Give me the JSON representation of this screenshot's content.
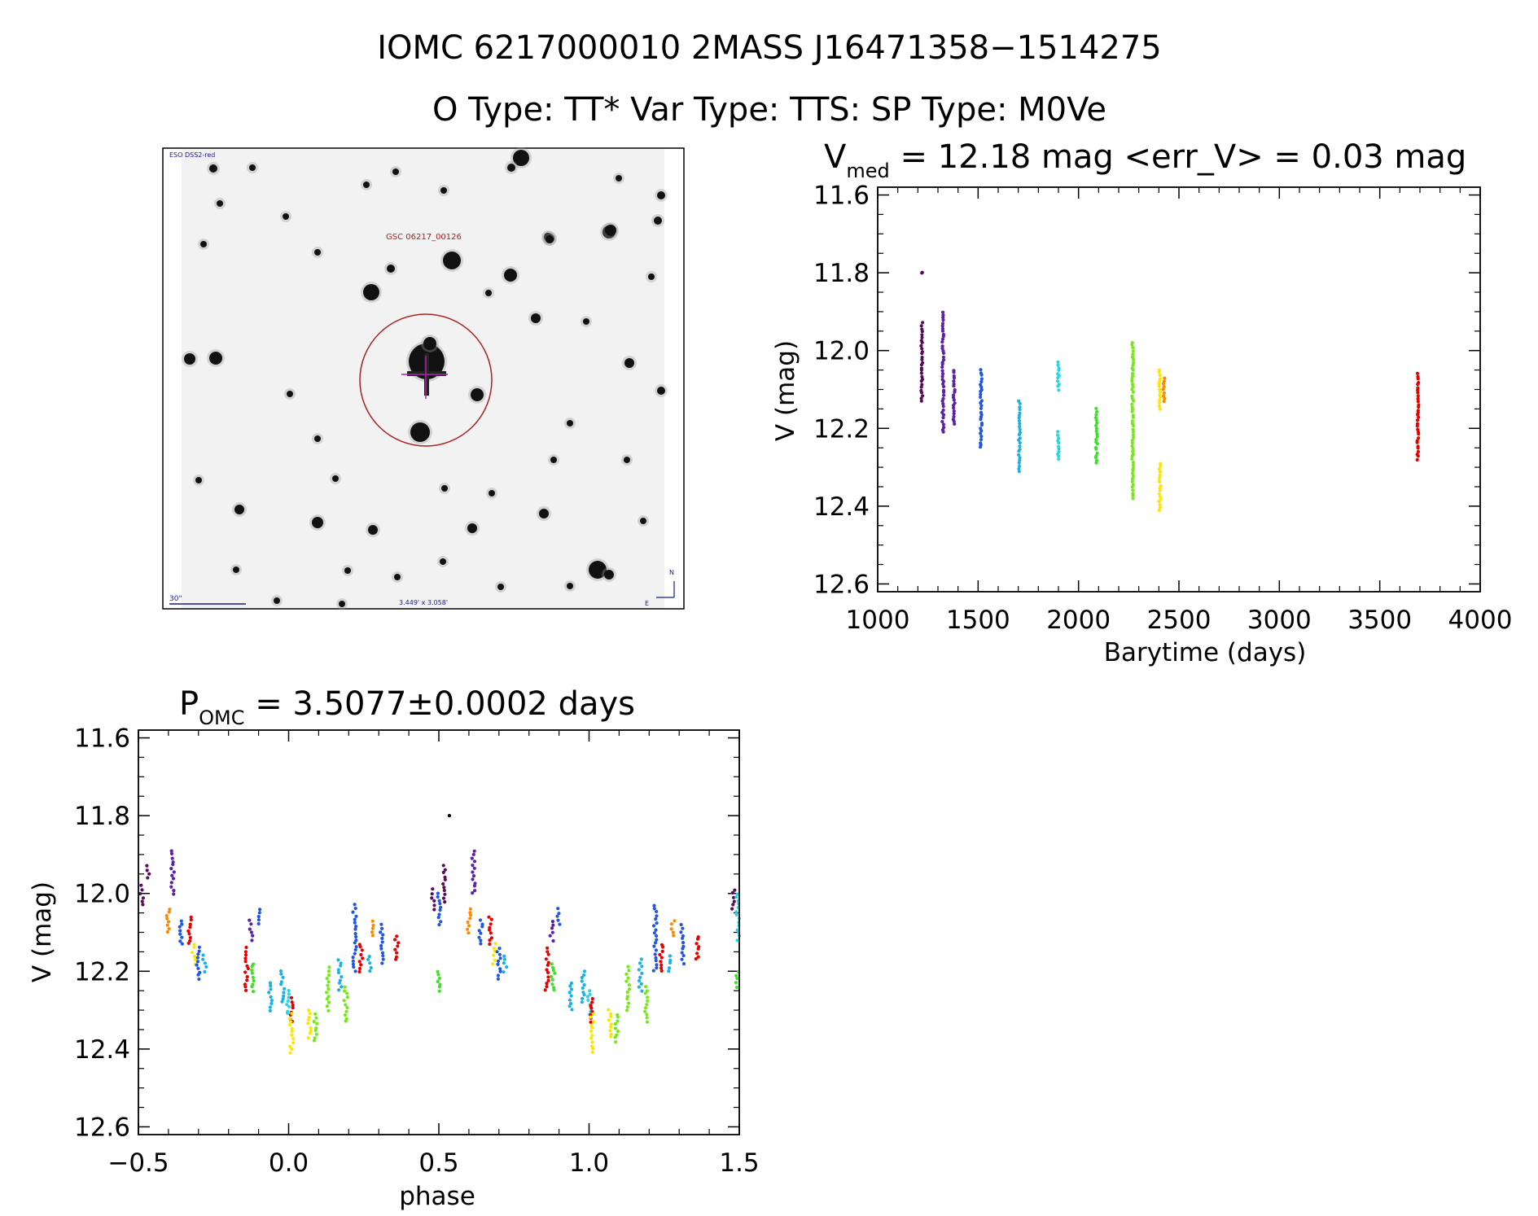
{
  "header": {
    "line1": "IOMC 6217000010    2MASS J16471358−1514275",
    "line2": "O Type: TT*  Var Type: TTS:  SP Type: M0Ve"
  },
  "finder": {
    "survey_label": "ESO DSS2-red",
    "target_label": "GSC 06217_00126",
    "scale_label": "30\"",
    "fov_label": "3.449' x 3.058'",
    "north_label": "N",
    "east_label": "E"
  },
  "colors": {
    "group_colors": [
      "#5a0a5a",
      "#5b1fa8",
      "#2255e6",
      "#1ab2e6",
      "#28d6e6",
      "#3ee02a",
      "#76ea17",
      "#00e000",
      "#ffe600",
      "#ff8a00",
      "#e60000"
    ],
    "marker_circle": "#aa2222",
    "marker_cross": "#aa22aa"
  },
  "chart_data": [
    {
      "type": "scatter",
      "title_main": "V",
      "title_sub": "med",
      "title_rest": " = 12.18 mag <err_V> = 0.03 mag",
      "xlabel": "Barytime (days)",
      "ylabel": "V (mag)",
      "xlim": [
        1000,
        4000
      ],
      "ylim": [
        12.62,
        11.58
      ],
      "xticks": [
        "1000",
        "1500",
        "2000",
        "2500",
        "3000",
        "3500",
        "4000"
      ],
      "yticks": [
        "11.6",
        "11.8",
        "12.0",
        "12.2",
        "12.4",
        "12.6"
      ],
      "groups": [
        {
          "x": 1220,
          "ymin": 11.93,
          "ymax": 12.13,
          "color_index": 0
        },
        {
          "x": 1222,
          "ymin": 11.8,
          "ymax": 11.8,
          "color_index": 0
        },
        {
          "x": 1325,
          "ymin": 11.9,
          "ymax": 12.21,
          "color_index": 1
        },
        {
          "x": 1380,
          "ymin": 12.05,
          "ymax": 12.19,
          "color_index": 1
        },
        {
          "x": 1515,
          "ymin": 12.05,
          "ymax": 12.25,
          "color_index": 2
        },
        {
          "x": 1705,
          "ymin": 12.13,
          "ymax": 12.31,
          "color_index": 3
        },
        {
          "x": 1900,
          "ymin": 12.03,
          "ymax": 12.1,
          "color_index": 4
        },
        {
          "x": 1900,
          "ymin": 12.21,
          "ymax": 12.28,
          "color_index": 4
        },
        {
          "x": 2090,
          "ymin": 12.15,
          "ymax": 12.29,
          "color_index": 5
        },
        {
          "x": 2270,
          "ymin": 11.98,
          "ymax": 12.38,
          "color_index": 6
        },
        {
          "x": 2405,
          "ymin": 12.05,
          "ymax": 12.15,
          "color_index": 8
        },
        {
          "x": 2405,
          "ymin": 12.29,
          "ymax": 12.41,
          "color_index": 8
        },
        {
          "x": 2425,
          "ymin": 12.07,
          "ymax": 12.13,
          "color_index": 9
        },
        {
          "x": 3690,
          "ymin": 12.06,
          "ymax": 12.28,
          "color_index": 10
        }
      ]
    },
    {
      "type": "scatter",
      "title_main": "P",
      "title_sub": "OMC",
      "title_rest": " = 3.5077±0.0002 days",
      "xlabel": "phase",
      "ylabel": "V (mag)",
      "xlim": [
        -0.5,
        1.5
      ],
      "ylim": [
        12.62,
        11.58
      ],
      "xticks": [
        "−0.5",
        "0.0",
        "0.5",
        "1.0",
        "1.5"
      ],
      "yticks": [
        "11.6",
        "11.8",
        "12.0",
        "12.2",
        "12.4",
        "12.6"
      ],
      "outlier": {
        "x": 0.535,
        "y": 11.8
      },
      "groups": [
        {
          "x": -0.49,
          "ymin": 11.98,
          "ymax": 12.03,
          "color_index": 0
        },
        {
          "x": -0.47,
          "ymin": 11.93,
          "ymax": 11.96,
          "color_index": 0
        },
        {
          "x": -0.385,
          "ymin": 11.89,
          "ymax": 12.0,
          "color_index": 1
        },
        {
          "x": -0.4,
          "ymin": 12.04,
          "ymax": 12.1,
          "color_index": 9
        },
        {
          "x": -0.36,
          "ymin": 12.07,
          "ymax": 12.13,
          "color_index": 2
        },
        {
          "x": -0.33,
          "ymin": 12.06,
          "ymax": 12.13,
          "color_index": 10
        },
        {
          "x": -0.315,
          "ymin": 12.13,
          "ymax": 12.18,
          "color_index": 8
        },
        {
          "x": -0.3,
          "ymin": 12.14,
          "ymax": 12.22,
          "color_index": 2
        },
        {
          "x": -0.28,
          "ymin": 12.16,
          "ymax": 12.2,
          "color_index": 3
        },
        {
          "x": -0.14,
          "ymin": 12.14,
          "ymax": 12.25,
          "color_index": 10
        },
        {
          "x": -0.125,
          "ymin": 12.07,
          "ymax": 12.12,
          "color_index": 1
        },
        {
          "x": -0.12,
          "ymin": 12.18,
          "ymax": 12.25,
          "color_index": 5
        },
        {
          "x": -0.1,
          "ymin": 12.04,
          "ymax": 12.08,
          "color_index": 2
        },
        {
          "x": -0.06,
          "ymin": 12.23,
          "ymax": 12.3,
          "color_index": 3
        },
        {
          "x": -0.02,
          "ymin": 12.2,
          "ymax": 12.28,
          "color_index": 3
        },
        {
          "x": 0.0,
          "ymin": 12.25,
          "ymax": 12.31,
          "color_index": 4
        },
        {
          "x": 0.01,
          "ymin": 12.27,
          "ymax": 12.33,
          "color_index": 10
        },
        {
          "x": 0.01,
          "ymin": 12.31,
          "ymax": 12.41,
          "color_index": 8
        },
        {
          "x": 0.07,
          "ymin": 12.3,
          "ymax": 12.37,
          "color_index": 8
        },
        {
          "x": 0.09,
          "ymin": 12.31,
          "ymax": 12.38,
          "color_index": 6
        },
        {
          "x": 0.13,
          "ymin": 12.19,
          "ymax": 12.3,
          "color_index": 6
        },
        {
          "x": 0.17,
          "ymin": 12.17,
          "ymax": 12.25,
          "color_index": 3
        },
        {
          "x": 0.19,
          "ymin": 12.24,
          "ymax": 12.33,
          "color_index": 6
        },
        {
          "x": 0.22,
          "ymin": 12.03,
          "ymax": 12.2,
          "color_index": 2
        },
        {
          "x": 0.24,
          "ymin": 12.13,
          "ymax": 12.2,
          "color_index": 10
        },
        {
          "x": 0.27,
          "ymin": 12.16,
          "ymax": 12.2,
          "color_index": 3
        },
        {
          "x": 0.28,
          "ymin": 12.07,
          "ymax": 12.11,
          "color_index": 9
        },
        {
          "x": 0.31,
          "ymin": 12.08,
          "ymax": 12.18,
          "color_index": 2
        },
        {
          "x": 0.36,
          "ymin": 12.11,
          "ymax": 12.17,
          "color_index": 10
        },
        {
          "x": 0.48,
          "ymin": 11.99,
          "ymax": 12.04,
          "color_index": 0
        },
        {
          "x": 0.5,
          "ymin": 12.0,
          "ymax": 12.08,
          "color_index": 2
        },
        {
          "x": 0.5,
          "ymin": 12.2,
          "ymax": 12.25,
          "color_index": 5
        },
        {
          "x": 0.52,
          "ymin": 11.93,
          "ymax": 12.02,
          "color_index": 0
        },
        {
          "x": 0.6,
          "ymin": 12.04,
          "ymax": 12.1,
          "color_index": 9
        },
        {
          "x": 0.615,
          "ymin": 11.89,
          "ymax": 12.0,
          "color_index": 1
        },
        {
          "x": 0.64,
          "ymin": 12.07,
          "ymax": 12.13,
          "color_index": 2
        },
        {
          "x": 0.67,
          "ymin": 12.06,
          "ymax": 12.13,
          "color_index": 10
        },
        {
          "x": 0.685,
          "ymin": 12.13,
          "ymax": 12.18,
          "color_index": 8
        },
        {
          "x": 0.7,
          "ymin": 12.14,
          "ymax": 12.22,
          "color_index": 2
        },
        {
          "x": 0.72,
          "ymin": 12.16,
          "ymax": 12.2,
          "color_index": 3
        },
        {
          "x": 0.86,
          "ymin": 12.14,
          "ymax": 12.25,
          "color_index": 10
        },
        {
          "x": 0.875,
          "ymin": 12.07,
          "ymax": 12.12,
          "color_index": 1
        },
        {
          "x": 0.88,
          "ymin": 12.18,
          "ymax": 12.25,
          "color_index": 5
        },
        {
          "x": 0.9,
          "ymin": 12.04,
          "ymax": 12.08,
          "color_index": 2
        },
        {
          "x": 0.94,
          "ymin": 12.23,
          "ymax": 12.3,
          "color_index": 3
        },
        {
          "x": 0.98,
          "ymin": 12.2,
          "ymax": 12.28,
          "color_index": 3
        },
        {
          "x": 1.0,
          "ymin": 12.25,
          "ymax": 12.31,
          "color_index": 4
        },
        {
          "x": 1.01,
          "ymin": 12.27,
          "ymax": 12.33,
          "color_index": 10
        },
        {
          "x": 1.01,
          "ymin": 12.31,
          "ymax": 12.41,
          "color_index": 8
        },
        {
          "x": 1.07,
          "ymin": 12.3,
          "ymax": 12.37,
          "color_index": 8
        },
        {
          "x": 1.09,
          "ymin": 12.31,
          "ymax": 12.38,
          "color_index": 6
        },
        {
          "x": 1.13,
          "ymin": 12.19,
          "ymax": 12.3,
          "color_index": 6
        },
        {
          "x": 1.17,
          "ymin": 12.17,
          "ymax": 12.25,
          "color_index": 3
        },
        {
          "x": 1.19,
          "ymin": 12.24,
          "ymax": 12.33,
          "color_index": 6
        },
        {
          "x": 1.22,
          "ymin": 12.03,
          "ymax": 12.2,
          "color_index": 2
        },
        {
          "x": 1.24,
          "ymin": 12.13,
          "ymax": 12.2,
          "color_index": 10
        },
        {
          "x": 1.27,
          "ymin": 12.16,
          "ymax": 12.2,
          "color_index": 3
        },
        {
          "x": 1.28,
          "ymin": 12.07,
          "ymax": 12.11,
          "color_index": 9
        },
        {
          "x": 1.31,
          "ymin": 12.08,
          "ymax": 12.18,
          "color_index": 2
        },
        {
          "x": 1.36,
          "ymin": 12.11,
          "ymax": 12.17,
          "color_index": 10
        },
        {
          "x": 1.48,
          "ymin": 11.99,
          "ymax": 12.04,
          "color_index": 0
        },
        {
          "x": 1.495,
          "ymin": 12.0,
          "ymax": 12.12,
          "color_index": 4
        },
        {
          "x": 1.495,
          "ymin": 12.2,
          "ymax": 12.24,
          "color_index": 5
        }
      ]
    }
  ]
}
